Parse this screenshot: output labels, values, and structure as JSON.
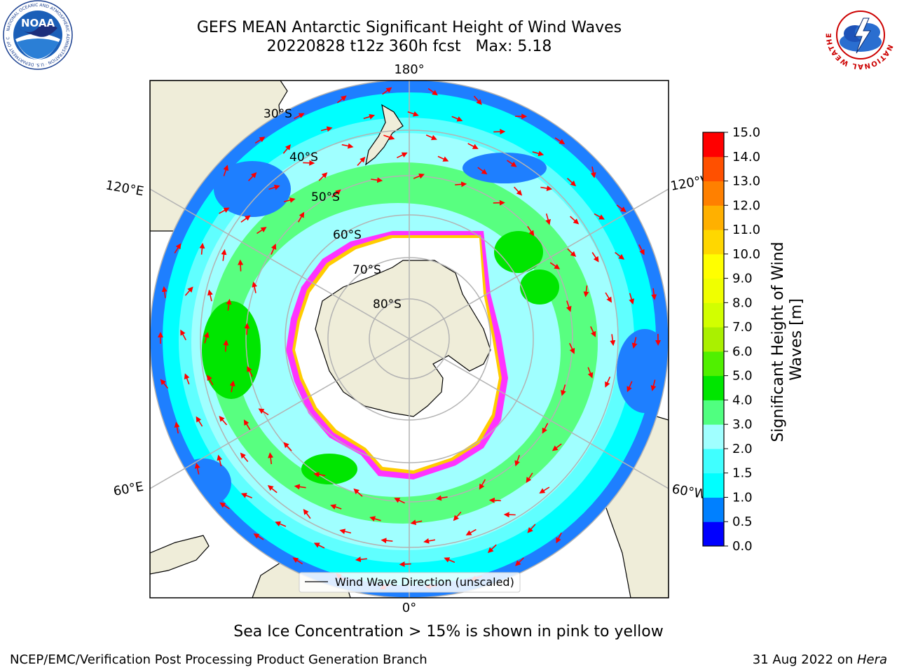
{
  "title": {
    "line1": "GEFS MEAN Antarctic Significant Height of Wind Waves",
    "line2": "20220828 t12z 360h fcst   Max: 5.18"
  },
  "logos": {
    "left": {
      "icon": "noaa-logo",
      "text": "NOAA",
      "ring_text": "NATIONAL OCEANIC AND ATMOSPHERIC ADMINISTRATION · U.S. DEPARTMENT OF COMMERCE"
    },
    "right": {
      "icon": "national-weather-service-logo",
      "ring_text": "NATIONAL WEATHER SERVICE"
    }
  },
  "map": {
    "projection": "south-polar-stereographic",
    "longitude_labels": {
      "top": "180°",
      "bottom": "0°",
      "upper_left": "120°E",
      "upper_right": "120°W",
      "lower_left": "60°E",
      "lower_right": "60°W"
    },
    "latitude_labels": [
      "30°S",
      "40°S",
      "50°S",
      "60°S",
      "70°S",
      "80°S"
    ],
    "legend_label": "Wind Wave Direction (unscaled)",
    "colors": {
      "land": "#efedd9",
      "ice_pink": "#ff33ff",
      "ice_yellow": "#ffcc00",
      "arrow": "#ff0000",
      "graticule": "#b3b3b3"
    }
  },
  "colorbar": {
    "label": "Significant Height of Wind Waves [m]",
    "ticks": [
      "0.0",
      "0.5",
      "1.0",
      "1.5",
      "2.0",
      "3.0",
      "4.0",
      "5.0",
      "6.0",
      "7.0",
      "8.0",
      "9.0",
      "10.0",
      "11.0",
      "12.0",
      "13.0",
      "14.0",
      "15.0"
    ],
    "colors": [
      "#0000ff",
      "#0080ff",
      "#00ffff",
      "#40ffff",
      "#a0ffff",
      "#50ff80",
      "#00e600",
      "#50f000",
      "#aaf000",
      "#d2ff00",
      "#f0ff00",
      "#ffff00",
      "#ffd700",
      "#ffb000",
      "#ff8000",
      "#ff5000",
      "#ff0000"
    ]
  },
  "caption": "Sea Ice Concentration > 15% is shown in pink to yellow",
  "footer": {
    "left": "NCEP/EMC/Verification Post Processing Product Generation Branch",
    "date": "31 Aug 2022 on ",
    "machine": "Hera"
  }
}
